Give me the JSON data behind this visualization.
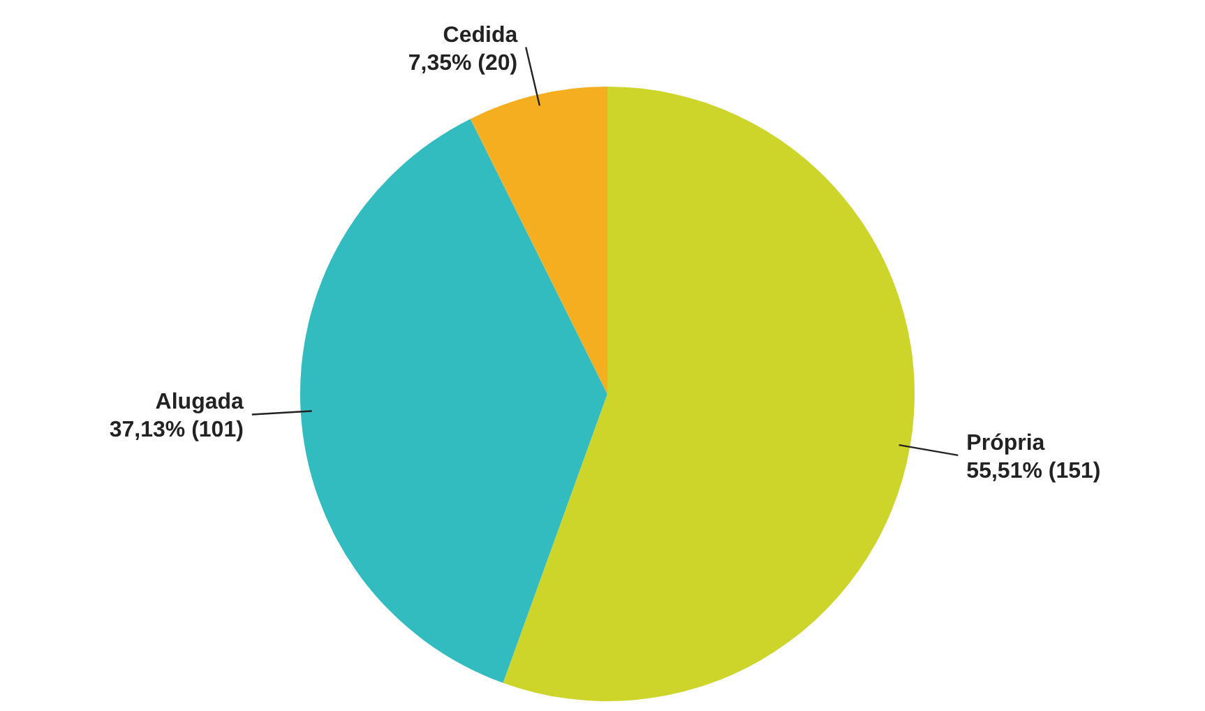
{
  "chart_data": {
    "type": "pie",
    "categories": [
      "Própria",
      "Alugada",
      "Cedida"
    ],
    "values": [
      151,
      101,
      20
    ],
    "value_labels": [
      "55,51% (151)",
      "37,13% (101)",
      "7,35% (20)"
    ],
    "colors": [
      "#cdd42a",
      "#33bcbf",
      "#f5ae1f"
    ]
  }
}
